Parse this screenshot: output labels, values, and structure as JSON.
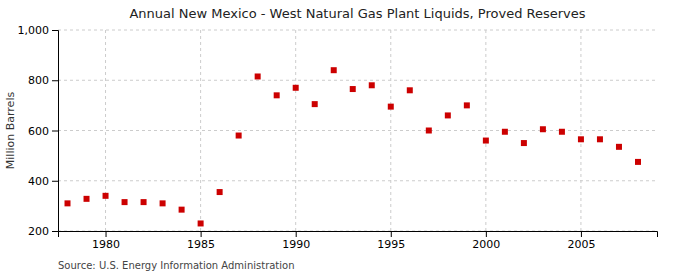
{
  "chart_data": {
    "type": "scatter",
    "title": "Annual New Mexico - West Natural Gas Plant Liquids, Proved Reserves",
    "y_label": "Million Barrels",
    "annotation": "Source: U.S. Energy Information Administration",
    "x": [
      1978,
      1979,
      1980,
      1981,
      1982,
      1983,
      1984,
      1985,
      1986,
      1987,
      1988,
      1989,
      1990,
      1991,
      1992,
      1993,
      1994,
      1995,
      1996,
      1997,
      1998,
      1999,
      2000,
      2001,
      2002,
      2003,
      2004,
      2005,
      2006,
      2007,
      2008
    ],
    "values": [
      310,
      328,
      340,
      315,
      315,
      310,
      285,
      230,
      355,
      580,
      815,
      740,
      770,
      705,
      840,
      765,
      780,
      695,
      760,
      600,
      660,
      700,
      560,
      595,
      550,
      605,
      595,
      565,
      565,
      535,
      475
    ],
    "color": "#cc0000",
    "marker": "square",
    "xlim": [
      1977.5,
      2009
    ],
    "xticks": [
      1980,
      1985,
      1990,
      1995,
      2000,
      2005
    ],
    "ylim": [
      200,
      1000
    ],
    "yticks": [
      200,
      400,
      600,
      800,
      {
        "value": 1000,
        "label": "1,000"
      }
    ],
    "grid": true
  }
}
